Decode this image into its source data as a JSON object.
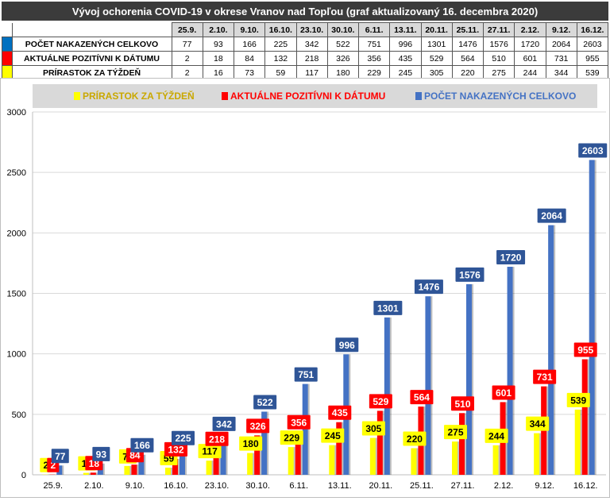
{
  "header": {
    "title": "Vývoj ochorenia COVID-19 v okrese Vranov nad Topľou (graf aktualizovaný 16. decembra 2020)"
  },
  "table": {
    "dates": [
      "25.9.",
      "2.10.",
      "9.10.",
      "16.10.",
      "23.10.",
      "30.10.",
      "6.11.",
      "13.11.",
      "20.11.",
      "25.11.",
      "27.11.",
      "2.12.",
      "9.12.",
      "16.12."
    ],
    "rows": [
      {
        "label": "POČET NAKAZENÝCH CELKOVO",
        "color": "#0070c0",
        "values": [
          "77",
          "93",
          "166",
          "225",
          "342",
          "522",
          "751",
          "996",
          "1301",
          "1476",
          "1576",
          "1720",
          "2064",
          "2603"
        ]
      },
      {
        "label": "AKTUÁLNE POZITÍVNI K DÁTUMU",
        "color": "#ff0000",
        "values": [
          "2",
          "18",
          "84",
          "132",
          "218",
          "326",
          "356",
          "435",
          "529",
          "564",
          "510",
          "601",
          "731",
          "955"
        ]
      },
      {
        "label": "PRÍRASTOK ZA TÝŽDEŇ",
        "color": "#ffff00",
        "values": [
          "2",
          "16",
          "73",
          "59",
          "117",
          "180",
          "229",
          "245",
          "305",
          "220",
          "275",
          "244",
          "344",
          "539"
        ]
      }
    ]
  },
  "chart_data": {
    "type": "bar",
    "categories": [
      "25.9.",
      "2.10.",
      "9.10.",
      "16.10.",
      "23.10.",
      "30.10.",
      "6.11.",
      "13.11.",
      "20.11.",
      "25.11.",
      "27.11.",
      "2.12.",
      "9.12.",
      "16.12."
    ],
    "series": [
      {
        "name": "PRÍRASTOK ZA TÝŽDEŇ",
        "color": "#ffff00",
        "label_bg": "#ffff00",
        "label_fg": "#000000",
        "legend_fg": "#c9a800",
        "values": [
          2,
          16,
          73,
          59,
          117,
          180,
          229,
          245,
          305,
          220,
          275,
          244,
          344,
          539
        ]
      },
      {
        "name": "AKTUÁLNE POZITÍVNI K DÁTUMU",
        "color": "#ff0000",
        "label_bg": "#ff0000",
        "label_fg": "#ffffff",
        "legend_fg": "#ff0000",
        "values": [
          2,
          18,
          84,
          132,
          218,
          326,
          356,
          435,
          529,
          564,
          510,
          601,
          731,
          955
        ]
      },
      {
        "name": "POČET NAKAZENÝCH CELKOVO",
        "color": "#4472c4",
        "label_bg": "#2f5597",
        "label_fg": "#ffffff",
        "legend_fg": "#4472c4",
        "values": [
          77,
          93,
          166,
          225,
          342,
          522,
          751,
          996,
          1301,
          1476,
          1576,
          1720,
          2064,
          2603
        ]
      }
    ],
    "yticks": [
      0,
      500,
      1000,
      1500,
      2000,
      2500,
      3000
    ],
    "ylim": [
      0,
      3000
    ],
    "grid": true,
    "legend_position": "top"
  }
}
